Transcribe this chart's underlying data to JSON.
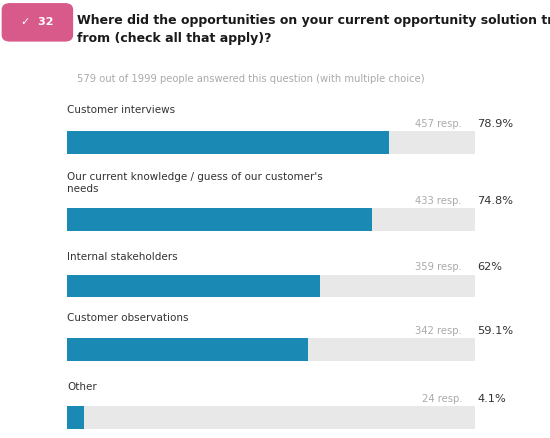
{
  "question_number": "32",
  "question_text": "Where did the opportunities on your current opportunity solution tree come\nfrom (check all that apply)?",
  "subtitle": "579 out of 1999 people answered this question (with multiple choice)",
  "categories": [
    "Customer interviews",
    "Our current knowledge / guess of our customer's\nneeds",
    "Internal stakeholders",
    "Customer observations",
    "Other"
  ],
  "resp_labels": [
    "457 resp.",
    "433 resp.",
    "359 resp.",
    "342 resp.",
    "24 resp."
  ],
  "pct_labels": [
    "78.9%",
    "74.8%",
    "62%",
    "59.1%",
    "4.1%"
  ],
  "percentages": [
    78.9,
    74.8,
    62.0,
    59.1,
    4.1
  ],
  "bar_color": "#1a8ab5",
  "bg_bar_color": "#e8e8e8",
  "badge_color": "#d85a8a",
  "badge_text_color": "#ffffff",
  "question_text_color": "#1a1a1a",
  "subtitle_color": "#aaaaaa",
  "label_color": "#333333",
  "resp_color": "#aaaaaa",
  "pct_color": "#333333",
  "background_color": "#ffffff"
}
